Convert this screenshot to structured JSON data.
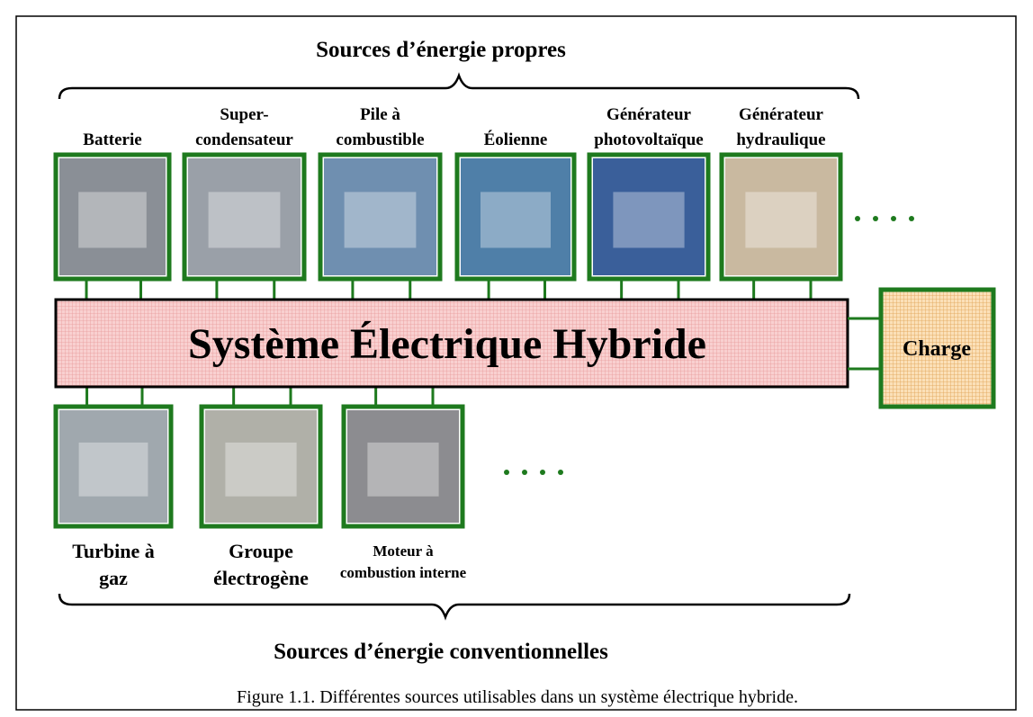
{
  "title_top": "Sources d’énergie propres",
  "top_sources": [
    {
      "label": [
        "Batterie"
      ]
    },
    {
      "label": [
        "Super-",
        "condensateur"
      ]
    },
    {
      "label": [
        "Pile à",
        "combustible"
      ]
    },
    {
      "label": [
        "Éolienne"
      ]
    },
    {
      "label": [
        "Générateur",
        "photovoltaïque"
      ]
    },
    {
      "label": [
        "Générateur",
        "hydraulique"
      ]
    }
  ],
  "system": "Système Électrique Hybride",
  "load": "Charge",
  "bottom_sources": [
    {
      "label": [
        "Turbine à",
        "gaz"
      ]
    },
    {
      "label": [
        "Groupe",
        "électrogène"
      ]
    },
    {
      "label": [
        "Moteur à",
        "combustion interne"
      ]
    }
  ],
  "title_bottom": "Sources d’énergie conventionnelles",
  "caption": "Figure 1.1. Différentes sources utilisables dans un système électrique hybride."
}
